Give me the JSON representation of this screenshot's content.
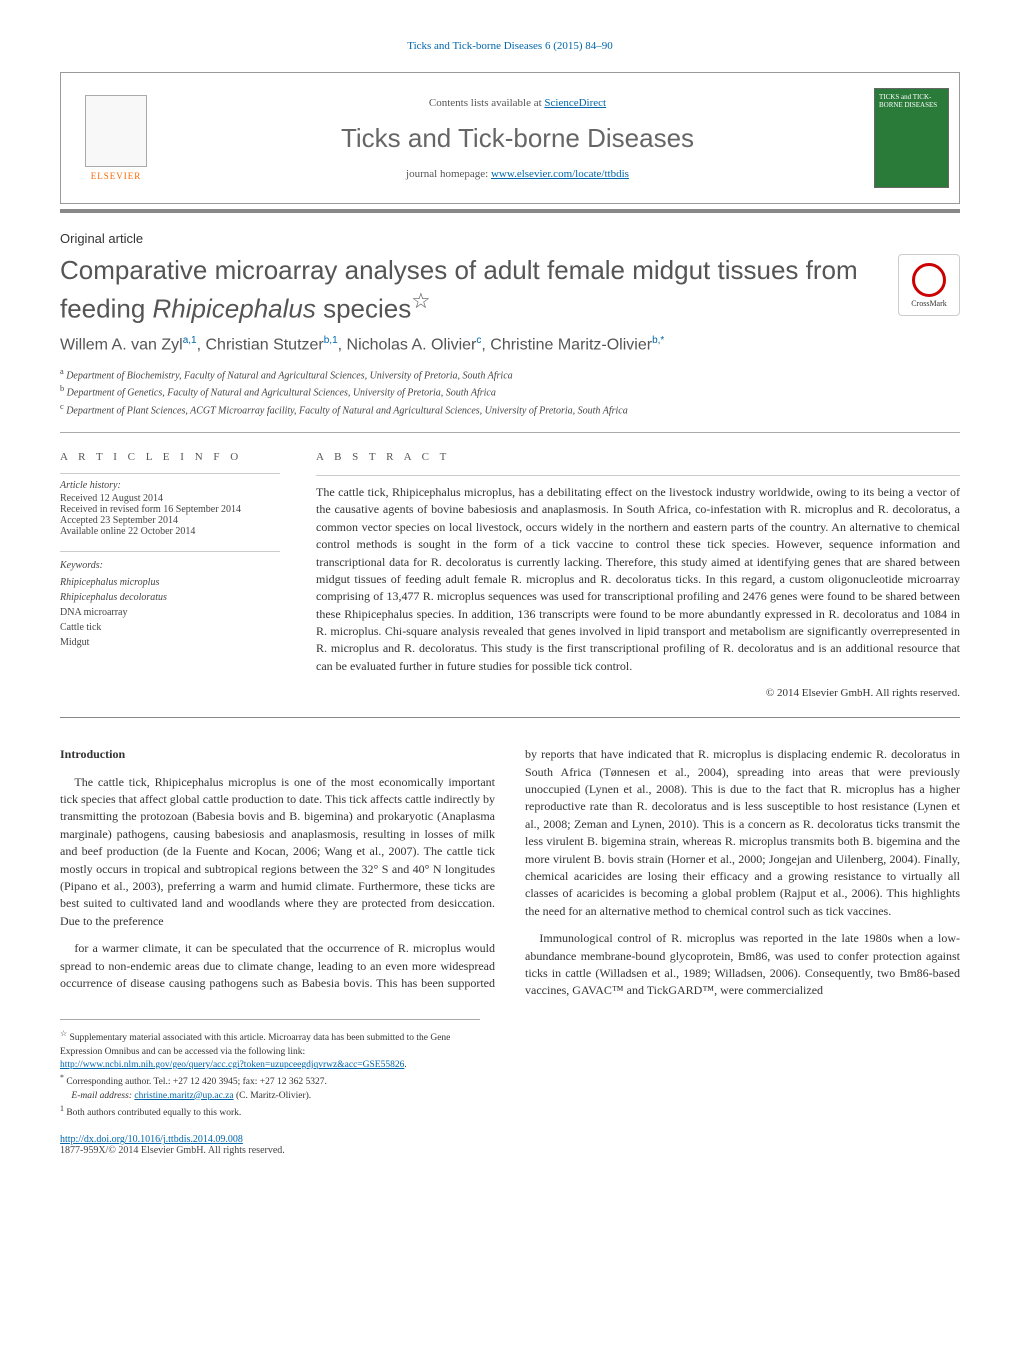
{
  "running_head": "Ticks and Tick-borne Diseases 6 (2015) 84–90",
  "header": {
    "contents_prefix": "Contents lists available at ",
    "contents_link": "ScienceDirect",
    "journal_title": "Ticks and Tick-borne Diseases",
    "journal_homepage_label": "journal homepage: ",
    "journal_homepage_url": "www.elsevier.com/locate/ttbdis",
    "elsevier": "ELSEVIER",
    "cover_text": "TICKS and TICK-BORNE DISEASES"
  },
  "article_type": "Original article",
  "title_main": "Comparative microarray analyses of adult female midgut tissues from feeding ",
  "title_italic": "Rhipicephalus",
  "title_suffix": " species",
  "title_star": "☆",
  "crossmark": "CrossMark",
  "authors": {
    "a1": "Willem A. van Zyl",
    "a1_sup": "a,1",
    "a2": "Christian Stutzer",
    "a2_sup": "b,1",
    "a3": "Nicholas A. Olivier",
    "a3_sup": "c",
    "a4": "Christine Maritz-Olivier",
    "a4_sup": "b,*"
  },
  "affiliations": {
    "a": "Department of Biochemistry, Faculty of Natural and Agricultural Sciences, University of Pretoria, South Africa",
    "b": "Department of Genetics, Faculty of Natural and Agricultural Sciences, University of Pretoria, South Africa",
    "c": "Department of Plant Sciences, ACGT Microarray facility, Faculty of Natural and Agricultural Sciences, University of Pretoria, South Africa"
  },
  "info": {
    "head": "A R T I C L E   I N F O",
    "history_label": "Article history:",
    "received": "Received 12 August 2014",
    "revised": "Received in revised form 16 September 2014",
    "accepted": "Accepted 23 September 2014",
    "online": "Available online 22 October 2014",
    "keywords_label": "Keywords:",
    "kw1": "Rhipicephalus microplus",
    "kw2": "Rhipicephalus decoloratus",
    "kw3": "DNA microarray",
    "kw4": "Cattle tick",
    "kw5": "Midgut"
  },
  "abstract": {
    "head": "A B S T R A C T",
    "body": "The cattle tick, Rhipicephalus microplus, has a debilitating effect on the livestock industry worldwide, owing to its being a vector of the causative agents of bovine babesiosis and anaplasmosis. In South Africa, co-infestation with R. microplus and R. decoloratus, a common vector species on local livestock, occurs widely in the northern and eastern parts of the country. An alternative to chemical control methods is sought in the form of a tick vaccine to control these tick species. However, sequence information and transcriptional data for R. decoloratus is currently lacking. Therefore, this study aimed at identifying genes that are shared between midgut tissues of feeding adult female R. microplus and R. decoloratus ticks. In this regard, a custom oligonucleotide microarray comprising of 13,477 R. microplus sequences was used for transcriptional profiling and 2476 genes were found to be shared between these Rhipicephalus species. In addition, 136 transcripts were found to be more abundantly expressed in R. decoloratus and 1084 in R. microplus. Chi-square analysis revealed that genes involved in lipid transport and metabolism are significantly overrepresented in R. microplus and R. decoloratus. This study is the first transcriptional profiling of R. decoloratus and is an additional resource that can be evaluated further in future studies for possible tick control.",
    "copyright": "© 2014 Elsevier GmbH. All rights reserved."
  },
  "body": {
    "section_head": "Introduction",
    "p1": "The cattle tick, Rhipicephalus microplus is one of the most economically important tick species that affect global cattle production to date. This tick affects cattle indirectly by transmitting the protozoan (Babesia bovis and B. bigemina) and prokaryotic (Anaplasma marginale) pathogens, causing babesiosis and anaplasmosis, resulting in losses of milk and beef production (de la Fuente and Kocan, 2006; Wang et al., 2007). The cattle tick mostly occurs in tropical and subtropical regions between the 32° S and 40° N longitudes (Pipano et al., 2003), preferring a warm and humid climate. Furthermore, these ticks are best suited to cultivated land and woodlands where they are protected from desiccation. Due to the preference",
    "p2": "for a warmer climate, it can be speculated that the occurrence of R. microplus would spread to non-endemic areas due to climate change, leading to an even more widespread occurrence of disease causing pathogens such as Babesia bovis. This has been supported by reports that have indicated that R. microplus is displacing endemic R. decoloratus in South Africa (Tønnesen et al., 2004), spreading into areas that were previously unoccupied (Lynen et al., 2008). This is due to the fact that R. microplus has a higher reproductive rate than R. decoloratus and is less susceptible to host resistance (Lynen et al., 2008; Zeman and Lynen, 2010). This is a concern as R. decoloratus ticks transmit the less virulent B. bigemina strain, whereas R. microplus transmits both B. bigemina and the more virulent B. bovis strain (Horner et al., 2000; Jongejan and Uilenberg, 2004). Finally, chemical acaricides are losing their efficacy and a growing resistance to virtually all classes of acaricides is becoming a global problem (Rajput et al., 2006). This highlights the need for an alternative method to chemical control such as tick vaccines.",
    "p3": "Immunological control of R. microplus was reported in the late 1980s when a low-abundance membrane-bound glycoprotein, Bm86, was used to confer protection against ticks in cattle (Willadsen et al., 1989; Willadsen, 2006). Consequently, two Bm86-based vaccines, GAVAC™ and TickGARD™, were commercialized"
  },
  "footnotes": {
    "star_label": "☆",
    "star_text": "Supplementary material associated with this article. Microarray data has been submitted to the Gene Expression Omnibus and can be accessed via the following link: ",
    "star_url": "http://www.ncbi.nlm.nih.gov/geo/query/acc.cgi?token=uzupceegdjqvrwz&acc=GSE55826",
    "star_period": ".",
    "corr_label": "*",
    "corr_text": "Corresponding author. Tel.: +27 12 420 3945; fax: +27 12 362 5327.",
    "email_label": "E-mail address: ",
    "email": "christine.maritz@up.ac.za",
    "email_tail": " (C. Maritz-Olivier).",
    "contrib_label": "1",
    "contrib_text": "Both authors contributed equally to this work."
  },
  "doi": {
    "url": "http://dx.doi.org/10.1016/j.ttbdis.2014.09.008",
    "issn": "1877-959X/© 2014 Elsevier GmbH. All rights reserved."
  },
  "colors": {
    "link": "#0066aa",
    "elsevier_orange": "#ff6600",
    "title_gray": "#555555",
    "cover_green": "#2a7a3a"
  }
}
